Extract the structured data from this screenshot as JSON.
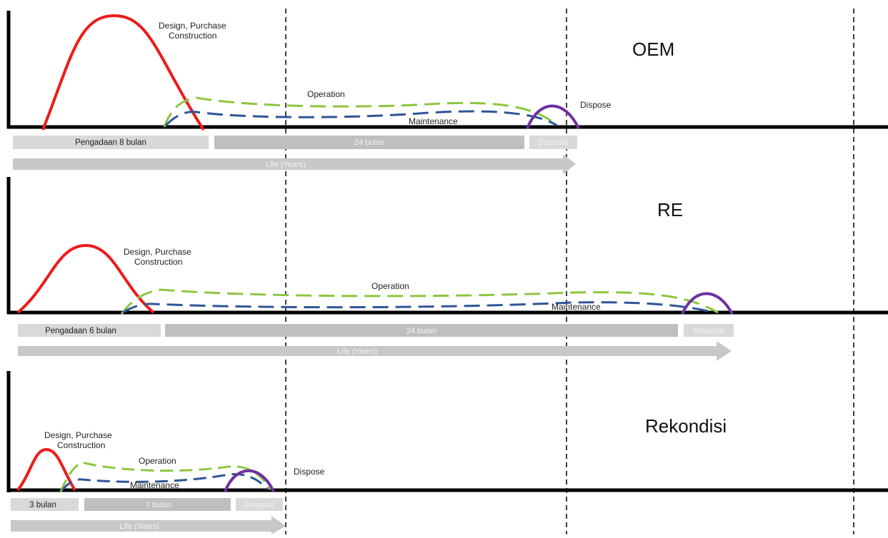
{
  "colors": {
    "design": "#ee1b1b",
    "operation": "#8cc63f",
    "maintenance": "#2e5597",
    "dispose": "#7030a0",
    "axis": "#000000",
    "bar_light": "#d9d9d9",
    "bar_mid": "#bfbfbf",
    "arrow": "#c8c8c8"
  },
  "panels": [
    {
      "id": "oem",
      "title": "OEM",
      "design_label_1": "Design, Purchase",
      "design_label_2": "Construction",
      "operation_label": "Operation",
      "maintenance_label": "Maintenance",
      "dispose_label": "Dispose",
      "procurement_bar": "Pengadaan 8 bulan",
      "life_bar": "24 bulan",
      "dispose_bar": "Disposal",
      "arrow_label": "Life (Years)"
    },
    {
      "id": "re",
      "title": "RE",
      "design_label_1": "Design, Purchase",
      "design_label_2": "Construction",
      "operation_label": "Operation",
      "maintenance_label": "Maintenance",
      "dispose_label": "",
      "procurement_bar": "Pengadaan 6 bulan",
      "life_bar": "24 bulan",
      "dispose_bar": "Disposal",
      "arrow_label": "Life (Years)"
    },
    {
      "id": "rekondisi",
      "title": "Rekondisi",
      "design_label_1": "Design, Purchase",
      "design_label_2": "Construction",
      "operation_label": "Operation",
      "maintenance_label": "Maintenance",
      "dispose_label": "Dispose",
      "procurement_bar": "3 bulan",
      "life_bar": "7 bulan",
      "dispose_bar": "Disposal",
      "arrow_label": "Life (Years)"
    }
  ]
}
